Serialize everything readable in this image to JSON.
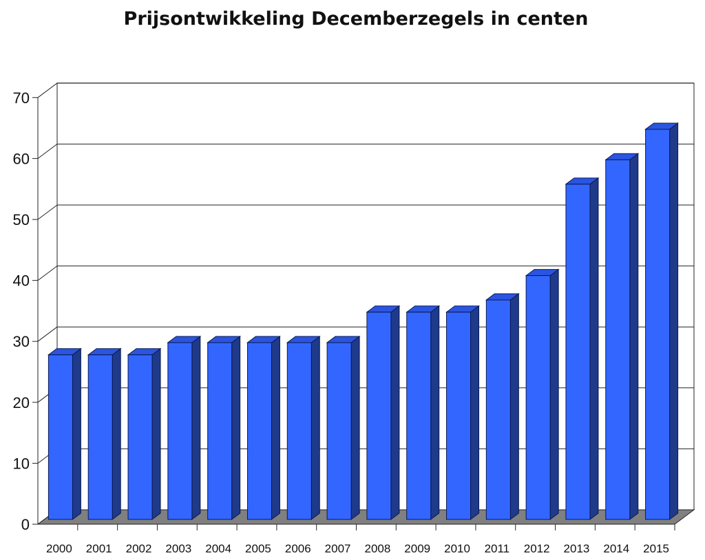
{
  "chart_data": {
    "type": "bar",
    "title": "Prijsontwikkeling Decemberzegels in centen",
    "xlabel": "",
    "ylabel": "",
    "categories": [
      "2000",
      "2001",
      "2002",
      "2003",
      "2004",
      "2005",
      "2006",
      "2007",
      "2008",
      "2009",
      "2010",
      "2011",
      "2012",
      "2013",
      "2014",
      "2015"
    ],
    "values": [
      27,
      27,
      27,
      29,
      29,
      29,
      29,
      29,
      34,
      34,
      34,
      36,
      40,
      55,
      59,
      64
    ],
    "ylim": [
      0,
      70
    ],
    "yticks": [
      "0",
      "10",
      "20",
      "30",
      "40",
      "50",
      "60",
      "70"
    ],
    "grid": true,
    "three_d": true,
    "colors": {
      "bar_front": "#3366ff",
      "bar_side": "#1f3a8a",
      "bar_top": "#2b55e0",
      "floor": "#808080"
    }
  }
}
